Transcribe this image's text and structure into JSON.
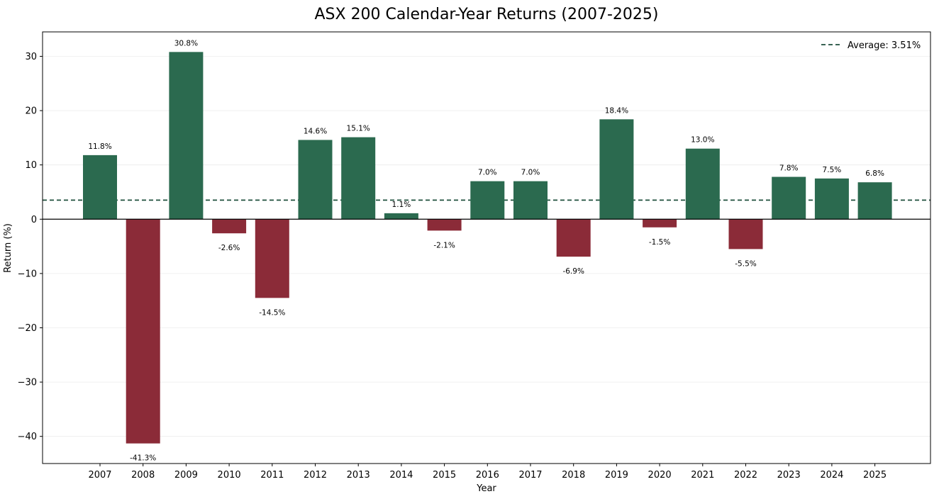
{
  "chart_data": {
    "type": "bar",
    "title": "ASX 200 Calendar-Year Returns (2007-2025)",
    "xlabel": "Year",
    "ylabel": "Return (%)",
    "ylim": [
      -45,
      34.5
    ],
    "yticks": [
      -40,
      -30,
      -20,
      -10,
      0,
      10,
      20,
      30
    ],
    "ytick_labels": [
      "−40",
      "−30",
      "−20",
      "−10",
      "0",
      "10",
      "20",
      "30"
    ],
    "grid": true,
    "categories": [
      "2007",
      "2008",
      "2009",
      "2010",
      "2011",
      "2012",
      "2013",
      "2014",
      "2015",
      "2016",
      "2017",
      "2018",
      "2019",
      "2020",
      "2021",
      "2022",
      "2023",
      "2024",
      "2025"
    ],
    "values": [
      11.8,
      -41.3,
      30.8,
      -2.6,
      -14.5,
      14.6,
      15.1,
      1.1,
      -2.1,
      7.0,
      7.0,
      -6.9,
      18.4,
      -1.5,
      13.0,
      -5.5,
      7.8,
      7.5,
      6.8
    ],
    "value_labels": [
      "11.8%",
      "-41.3%",
      "30.8%",
      "-2.6%",
      "-14.5%",
      "14.6%",
      "15.1%",
      "1.1%",
      "-2.1%",
      "7.0%",
      "7.0%",
      "-6.9%",
      "18.4%",
      "-1.5%",
      "13.0%",
      "-5.5%",
      "7.8%",
      "7.5%",
      "6.8%"
    ],
    "average": 3.51,
    "legend": {
      "entries": [
        "Average: 3.51%"
      ],
      "position": "top-right"
    },
    "colors": {
      "positive": "#2b6a4f",
      "negative": "#8b2b38",
      "average_line": "#1f4f3c",
      "zero_line": "#000000",
      "grid": "#ececec"
    }
  }
}
